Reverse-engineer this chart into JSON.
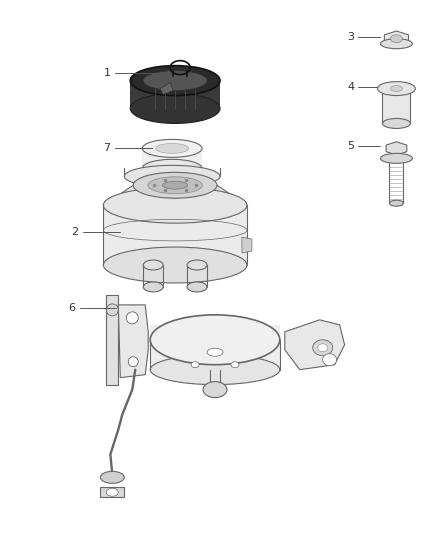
{
  "bg_color": "#ffffff",
  "line_color": "#666666",
  "dark_line": "#222222",
  "light_gray": "#cccccc",
  "medium_gray": "#999999",
  "label_color": "#333333",
  "fig_width": 4.38,
  "fig_height": 5.33,
  "dpi": 100
}
